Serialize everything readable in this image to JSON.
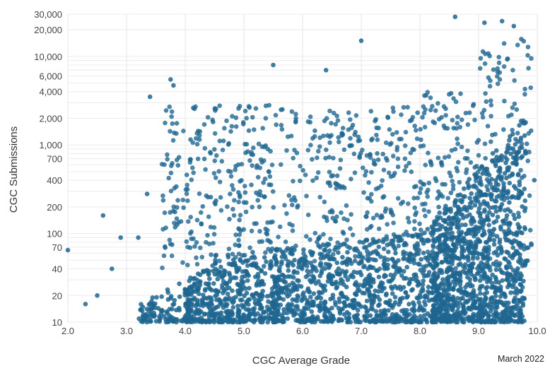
{
  "chart_data": {
    "type": "scatter",
    "title": "",
    "xlabel": "CGC Average Grade",
    "ylabel": "CGC Submissions",
    "xlim": [
      2.0,
      10.0
    ],
    "ylim": [
      10,
      30000
    ],
    "y_scale": "log",
    "x_ticks": [
      "2.0",
      "3.0",
      "4.0",
      "5.0",
      "6.0",
      "7.0",
      "8.0",
      "9.0",
      "10.0"
    ],
    "x_tick_values": [
      2,
      3,
      4,
      5,
      6,
      7,
      8,
      9,
      10
    ],
    "y_ticks": [
      "10",
      "20",
      "40",
      "70",
      "100",
      "200",
      "400",
      "700",
      "1,000",
      "2,000",
      "4,000",
      "6,000",
      "10,000",
      "20,000",
      "30,000"
    ],
    "y_tick_values": [
      10,
      20,
      40,
      70,
      100,
      200,
      400,
      700,
      1000,
      2000,
      4000,
      6000,
      10000,
      20000,
      30000
    ],
    "grid": true,
    "point_color": "#1f6691",
    "annotation": "March 2022",
    "sample_points": [
      {
        "x": 2.0,
        "y": 65
      },
      {
        "x": 2.3,
        "y": 16
      },
      {
        "x": 2.5,
        "y": 20
      },
      {
        "x": 2.6,
        "y": 160
      },
      {
        "x": 2.75,
        "y": 40
      },
      {
        "x": 2.9,
        "y": 90
      },
      {
        "x": 3.2,
        "y": 90
      },
      {
        "x": 3.35,
        "y": 280
      },
      {
        "x": 3.4,
        "y": 3500
      },
      {
        "x": 3.75,
        "y": 5500
      },
      {
        "x": 3.8,
        "y": 4700
      },
      {
        "x": 5.5,
        "y": 8000
      },
      {
        "x": 6.4,
        "y": 7000
      },
      {
        "x": 7.0,
        "y": 15000
      },
      {
        "x": 8.6,
        "y": 28000
      },
      {
        "x": 9.1,
        "y": 24000
      },
      {
        "x": 9.4,
        "y": 25000
      },
      {
        "x": 9.6,
        "y": 22000
      },
      {
        "x": 9.95,
        "y": 400
      }
    ]
  }
}
